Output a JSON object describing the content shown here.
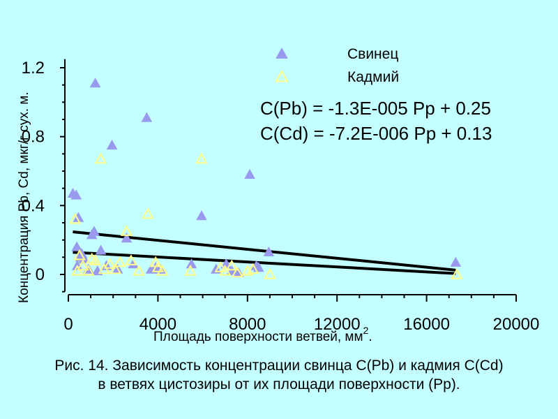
{
  "chart_data": {
    "type": "scatter",
    "xlabel": "Площадь поверхности ветвей, мм",
    "xlabel_sup": "2",
    "xlabel_end": ".",
    "ylabel": "Концентрация Pb, Cd, мкг/г сух. м.",
    "x_ticks": [
      "0",
      "4000",
      "8000",
      "12000",
      "16000",
      "20000"
    ],
    "y_ticks": [
      "0",
      "0.4",
      "0.8",
      "1.2"
    ],
    "xlim": [
      0,
      20000
    ],
    "ylim": [
      -0.1,
      1.25
    ],
    "legend_position": "top-right",
    "series": [
      {
        "name": "Свинец",
        "color": "#9999ee",
        "marker": "filled-triangle",
        "x": [
          200,
          350,
          450,
          550,
          380,
          700,
          1050,
          1150,
          1200,
          1450,
          1950,
          2600,
          3500,
          3700,
          5500,
          5950,
          6600,
          7050,
          7600,
          8100,
          8500,
          8950,
          17300,
          400,
          600,
          900,
          1300,
          1700,
          2200,
          2900,
          3900,
          4100,
          7300,
          8400
        ],
        "y": [
          0.47,
          0.46,
          0.33,
          0.1,
          0.16,
          0.09,
          0.23,
          0.25,
          1.11,
          0.14,
          0.75,
          0.21,
          0.91,
          0.03,
          0.06,
          0.34,
          0.03,
          0.06,
          0.01,
          0.58,
          0.04,
          0.13,
          0.07,
          0.05,
          0.12,
          0.03,
          0.02,
          0.05,
          0.03,
          0.06,
          0.04,
          0.03,
          0.02,
          0.05
        ]
      },
      {
        "name": "Кадмий",
        "color": "#ffff88",
        "marker": "hollow-triangle",
        "x": [
          300,
          500,
          900,
          1050,
          1200,
          1450,
          1850,
          2100,
          2300,
          2600,
          3150,
          3550,
          3900,
          4000,
          5450,
          5950,
          7000,
          7300,
          7550,
          8000,
          8250,
          9000,
          17350,
          400,
          650,
          1600,
          2800,
          4200,
          6800
        ],
        "y": [
          0.32,
          0.11,
          0.02,
          0.09,
          0.08,
          0.67,
          0.06,
          0.03,
          0.07,
          0.25,
          0.02,
          0.35,
          0.07,
          0.04,
          0.02,
          0.67,
          0.02,
          0.05,
          0.01,
          0.02,
          0.03,
          0.0,
          0.0,
          0.02,
          0.05,
          0.03,
          0.08,
          0.02,
          0.04
        ]
      }
    ],
    "trendlines": [
      {
        "series": "Свинец",
        "equation": "C(Pb) = -1.3E-005 Pp + 0.25",
        "slope": -1.3e-05,
        "intercept": 0.25,
        "x_range": [
          200,
          17300
        ],
        "color": "#000000"
      },
      {
        "series": "Кадмий",
        "equation": "C(Cd) = -7.2E-006 Pp + 0.13",
        "slope": -7.2e-06,
        "intercept": 0.13,
        "x_range": [
          200,
          17300
        ],
        "color": "#000000"
      }
    ]
  },
  "caption": {
    "line1": "Рис. 14. Зависимость концентрации свинца C(Pb) и кадмия C(Cd)",
    "line2": "в ветвях цистозиры от их площади поверхности (Pp)."
  }
}
